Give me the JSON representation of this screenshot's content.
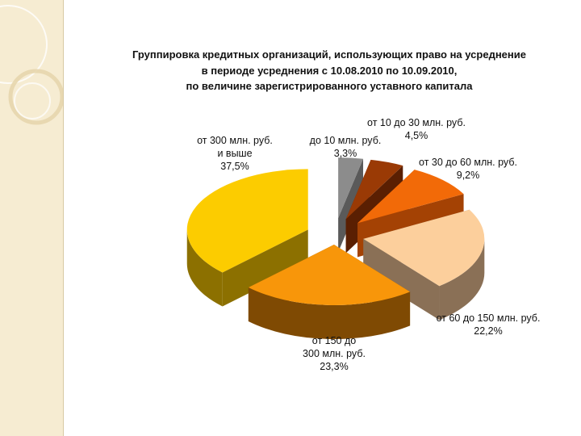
{
  "chart_data": {
    "type": "pie",
    "title_lines": [
      "Группировка кредитных организаций, использующих право на усреднение",
      "в периоде усреднения с 10.08.2010 по 10.09.2010,",
      "по величине зарегистрированного уставного капитала"
    ],
    "slices": [
      {
        "label_lines": [
          "до 10 млн. руб."
        ],
        "value_label": "3,3%",
        "value": 3.3,
        "color": "#8c8c8c",
        "side_color": "#5a5a5a"
      },
      {
        "label_lines": [
          "от 10 до 30 млн. руб."
        ],
        "value_label": "4,5%",
        "value": 4.5,
        "color": "#9a3a05",
        "side_color": "#5a1f02"
      },
      {
        "label_lines": [
          "от 30 до 60 млн. руб."
        ],
        "value_label": "9,2%",
        "value": 9.2,
        "color": "#f26a08",
        "side_color": "#a44204"
      },
      {
        "label_lines": [
          "от 60 до 150 млн. руб."
        ],
        "value_label": "22,2%",
        "value": 22.2,
        "color": "#fccf9c",
        "side_color": "#8a7056"
      },
      {
        "label_lines": [
          "от 150 до",
          "300 млн. руб."
        ],
        "value_label": "23,3%",
        "value": 23.3,
        "color": "#f8960a",
        "side_color": "#7f4a03"
      },
      {
        "label_lines": [
          "от 300 млн. руб.",
          "и выше"
        ],
        "value_label": "37,5%",
        "value": 37.5,
        "color": "#fccc00",
        "side_color": "#8c7000"
      }
    ]
  }
}
